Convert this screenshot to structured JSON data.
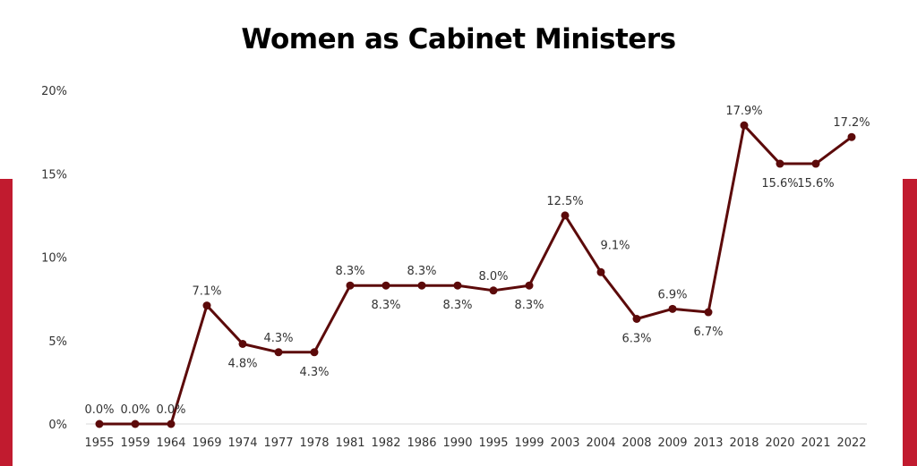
{
  "chart_data": {
    "type": "line",
    "title": "Women as Cabinet Ministers",
    "xlabel": "",
    "ylabel": "",
    "ylim": [
      0,
      20
    ],
    "yticks": [
      "0%",
      "5%",
      "10%",
      "15%",
      "20%"
    ],
    "ytick_values": [
      0,
      5,
      10,
      15,
      20
    ],
    "grid": false,
    "categories": [
      "1955",
      "1959",
      "1964",
      "1969",
      "1974",
      "1977",
      "1978",
      "1981",
      "1982",
      "1986",
      "1990",
      "1995",
      "1999",
      "2003",
      "2004",
      "2008",
      "2009",
      "2013",
      "2018",
      "2020",
      "2021",
      "2022"
    ],
    "series": [
      {
        "name": "Women as Cabinet Ministers",
        "values": [
          0.0,
          0.0,
          0.0,
          7.1,
          4.8,
          4.3,
          4.3,
          8.3,
          8.3,
          8.3,
          8.3,
          8.0,
          8.3,
          12.5,
          9.1,
          6.3,
          6.9,
          6.7,
          17.9,
          15.6,
          15.6,
          17.2
        ],
        "labels": [
          "0.0%",
          "0.0%",
          "0.0%",
          "7.1%",
          "4.8%",
          "4.3%",
          "4.3%",
          "8.3%",
          "8.3%",
          "8.3%",
          "8.3%",
          "8.0%",
          "8.3%",
          "12.5%",
          "9.1%",
          "6.3%",
          "6.9%",
          "6.7%",
          "17.9%",
          "15.6%",
          "15.6%",
          "17.2%"
        ],
        "color": "#5c0a0a"
      }
    ]
  },
  "colors": {
    "accent_bar": "#c11b2f",
    "axis": "#d9d9d9"
  }
}
